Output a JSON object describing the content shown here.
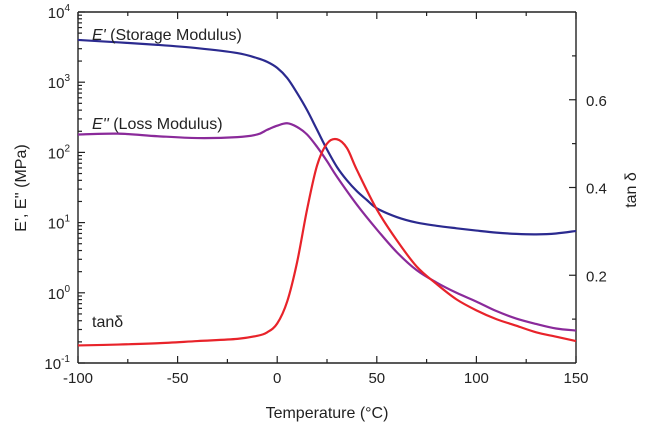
{
  "chart_data": {
    "type": "line",
    "title": "",
    "xlabel": "Temperature (°C)",
    "ylabel_left": "E', E'' (MPa)",
    "ylabel_right": "tan δ",
    "xlim": [
      -100,
      150
    ],
    "ylim_left": [
      0.1,
      10000
    ],
    "ylim_right": [
      0.0,
      0.8
    ],
    "y_left_scale": "log",
    "grid": false,
    "x_ticks": [
      -100,
      -50,
      0,
      50,
      100,
      150
    ],
    "y_left_ticks": [
      {
        "value": 0.1,
        "base": "10",
        "exp": "-1"
      },
      {
        "value": 1,
        "base": "10",
        "exp": "0"
      },
      {
        "value": 10,
        "base": "10",
        "exp": "1"
      },
      {
        "value": 100,
        "base": "10",
        "exp": "2"
      },
      {
        "value": 1000,
        "base": "10",
        "exp": "3"
      },
      {
        "value": 10000,
        "base": "10",
        "exp": "4"
      }
    ],
    "y_right_ticks": [
      0.2,
      0.4,
      0.6
    ],
    "series": [
      {
        "name": "E' (Storage Modulus)",
        "label_prefix": "E'",
        "label_text": " (Storage Modulus)",
        "axis": "left",
        "color": "#2b2a8f",
        "x": [
          -100,
          -80,
          -60,
          -40,
          -20,
          -10,
          -5,
          0,
          5,
          10,
          15,
          20,
          25,
          30,
          35,
          40,
          45,
          50,
          60,
          70,
          80,
          90,
          100,
          110,
          120,
          130,
          140,
          150
        ],
        "y": [
          4000,
          3700,
          3400,
          3050,
          2600,
          2200,
          1950,
          1600,
          1150,
          700,
          400,
          210,
          110,
          62,
          40,
          28,
          21,
          16,
          12,
          10,
          9,
          8.3,
          7.7,
          7.2,
          6.9,
          6.8,
          7.0,
          7.6
        ]
      },
      {
        "name": "E'' (Loss Modulus)",
        "label_prefix": "E''",
        "label_text": " (Loss Modulus)",
        "axis": "left",
        "color": "#8a2a9a",
        "x": [
          -100,
          -80,
          -60,
          -40,
          -20,
          -10,
          -5,
          0,
          5,
          10,
          15,
          20,
          25,
          30,
          40,
          50,
          60,
          70,
          80,
          90,
          100,
          110,
          120,
          130,
          140,
          150
        ],
        "y": [
          180,
          185,
          170,
          160,
          165,
          180,
          210,
          240,
          260,
          230,
          180,
          120,
          75,
          45,
          18,
          8,
          3.8,
          2.1,
          1.4,
          1.0,
          0.75,
          0.55,
          0.43,
          0.36,
          0.31,
          0.29
        ]
      },
      {
        "name": "tanδ",
        "label_prefix": "",
        "label_text": "tanδ",
        "axis": "right",
        "color": "#e8232a",
        "x": [
          -100,
          -80,
          -60,
          -40,
          -20,
          -10,
          -5,
          0,
          5,
          10,
          15,
          20,
          25,
          30,
          35,
          40,
          50,
          60,
          70,
          80,
          90,
          100,
          110,
          120,
          130,
          140,
          150
        ],
        "y": [
          0.04,
          0.042,
          0.045,
          0.05,
          0.055,
          0.062,
          0.07,
          0.09,
          0.14,
          0.23,
          0.35,
          0.45,
          0.5,
          0.51,
          0.49,
          0.44,
          0.35,
          0.28,
          0.22,
          0.18,
          0.145,
          0.12,
          0.1,
          0.085,
          0.07,
          0.06,
          0.05
        ]
      }
    ]
  }
}
